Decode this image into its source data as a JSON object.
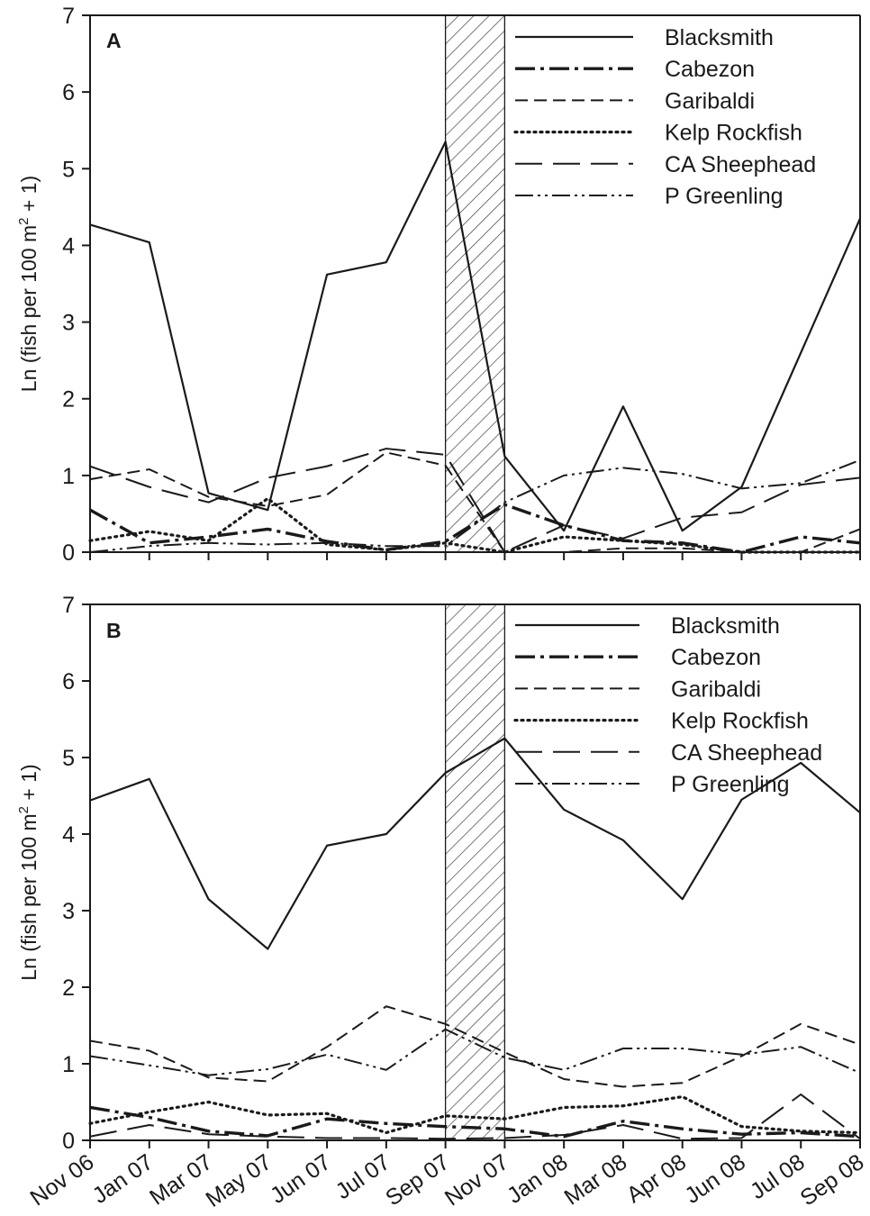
{
  "chart_data": [
    {
      "type": "line",
      "panel_label": "A",
      "ylabel": "Ln (fish per 100 m2 + 1)",
      "ylim": [
        0,
        7
      ],
      "yticks": [
        "0",
        "1",
        "2",
        "3",
        "4",
        "5",
        "6",
        "7"
      ],
      "categories": [
        "Nov 06",
        "Jan 07",
        "Mar 07",
        "May 07",
        "Jun 07",
        "Jul 07",
        "Sep 07",
        "Nov 07",
        "Jan 08",
        "Mar 08",
        "Apr 08",
        "Jun 08",
        "Jul 08",
        "Sep 08"
      ],
      "shaded_interval": [
        "Sep 07",
        "Nov 07"
      ],
      "legend_position": "top-right",
      "series": [
        {
          "name": "Blacksmith",
          "style": "solid",
          "values": [
            4.27,
            4.04,
            0.77,
            0.55,
            3.62,
            3.78,
            5.35,
            1.25,
            0.28,
            1.9,
            0.28,
            0.85,
            2.6,
            4.35
          ]
        },
        {
          "name": "Cabezon",
          "style": "dashdot-thick",
          "values": [
            0.55,
            0.12,
            0.2,
            0.3,
            0.14,
            0.03,
            0.14,
            0.62,
            0.35,
            0.15,
            0.12,
            0.0,
            0.2,
            0.12
          ]
        },
        {
          "name": "Garibaldi",
          "style": "dashed",
          "values": [
            0.95,
            1.08,
            0.72,
            0.6,
            0.75,
            1.3,
            1.13,
            0.0,
            0.0,
            0.05,
            0.05,
            0.0,
            0.0,
            0.3
          ]
        },
        {
          "name": "Kelp Rockfish",
          "style": "dotted",
          "values": [
            0.15,
            0.27,
            0.15,
            0.7,
            0.1,
            0.03,
            0.12,
            0.0,
            0.2,
            0.15,
            0.1,
            0.0,
            0.0,
            0.0
          ]
        },
        {
          "name": "CA Sheephead",
          "style": "longdash",
          "values": [
            1.12,
            0.85,
            0.65,
            0.97,
            1.12,
            1.35,
            1.27,
            0.0,
            0.35,
            0.18,
            0.45,
            0.52,
            0.88,
            0.97
          ]
        },
        {
          "name": "P Greenling",
          "style": "dashdotdot",
          "values": [
            0.0,
            0.08,
            0.12,
            0.1,
            0.12,
            0.08,
            0.08,
            0.65,
            1.0,
            1.1,
            1.02,
            0.83,
            0.9,
            1.2
          ]
        }
      ]
    },
    {
      "type": "line",
      "panel_label": "B",
      "ylabel": "Ln (fish per 100 m2 + 1)",
      "ylim": [
        0,
        7
      ],
      "yticks": [
        "0",
        "1",
        "2",
        "3",
        "4",
        "5",
        "6",
        "7"
      ],
      "categories": [
        "Nov 06",
        "Jan 07",
        "Mar 07",
        "May 07",
        "Jun 07",
        "Jul 07",
        "Sep 07",
        "Nov 07",
        "Jan 08",
        "Mar 08",
        "Apr 08",
        "Jun 08",
        "Jul 08",
        "Sep 08"
      ],
      "shaded_interval": [
        "Sep 07",
        "Nov 07"
      ],
      "legend_position": "top-right",
      "series": [
        {
          "name": "Blacksmith",
          "style": "solid",
          "values": [
            4.44,
            4.72,
            3.15,
            2.5,
            3.85,
            4.0,
            4.8,
            5.25,
            4.32,
            3.92,
            3.15,
            4.45,
            4.93,
            4.28
          ]
        },
        {
          "name": "Cabezon",
          "style": "dashdot-thick",
          "values": [
            0.43,
            0.3,
            0.12,
            0.06,
            0.28,
            0.22,
            0.18,
            0.15,
            0.05,
            0.25,
            0.15,
            0.08,
            0.1,
            0.05
          ]
        },
        {
          "name": "Garibaldi",
          "style": "dashed",
          "values": [
            1.3,
            1.17,
            0.82,
            0.77,
            1.22,
            1.75,
            1.52,
            1.15,
            0.8,
            0.7,
            0.75,
            1.1,
            1.52,
            1.25
          ]
        },
        {
          "name": "Kelp Rockfish",
          "style": "dotted",
          "values": [
            0.22,
            0.37,
            0.5,
            0.33,
            0.35,
            0.1,
            0.32,
            0.28,
            0.43,
            0.45,
            0.57,
            0.18,
            0.12,
            0.1
          ]
        },
        {
          "name": "CA Sheephead",
          "style": "longdash",
          "values": [
            0.05,
            0.2,
            0.08,
            0.05,
            0.03,
            0.03,
            0.02,
            0.03,
            0.07,
            0.2,
            0.02,
            0.03,
            0.6,
            0.02
          ]
        },
        {
          "name": "P Greenling",
          "style": "dashdotdot",
          "values": [
            1.1,
            0.98,
            0.85,
            0.93,
            1.12,
            0.92,
            1.45,
            1.08,
            0.92,
            1.2,
            1.2,
            1.12,
            1.22,
            0.88
          ]
        }
      ]
    }
  ]
}
